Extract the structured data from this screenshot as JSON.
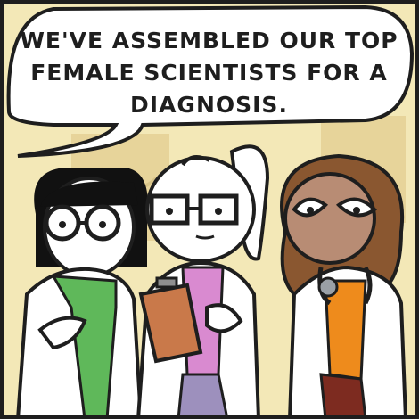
{
  "speech_bubble": {
    "text": "WE'VE ASSEMBLED OUR TOP FEMALE SCIENTISTS FOR A DIAGNOSIS."
  },
  "characters": [
    {
      "role": "scientist-left",
      "hair": "black bob",
      "shirt_color": "#5fb85a"
    },
    {
      "role": "scientist-center",
      "hair": "white ponytail",
      "shirt_color": "#d98ad0",
      "holding": "clipboard"
    },
    {
      "role": "scientist-right",
      "hair": "brown curly",
      "shirt_color": "#ee8b1c",
      "holding": "stethoscope"
    }
  ],
  "colors": {
    "wall": "#f3e8b7",
    "window": "#e7d49a",
    "outline": "#1e1e1e",
    "lab_coat": "#ffffff",
    "skin_tone_right": "#b88c74",
    "hair_right": "#8a5730"
  }
}
